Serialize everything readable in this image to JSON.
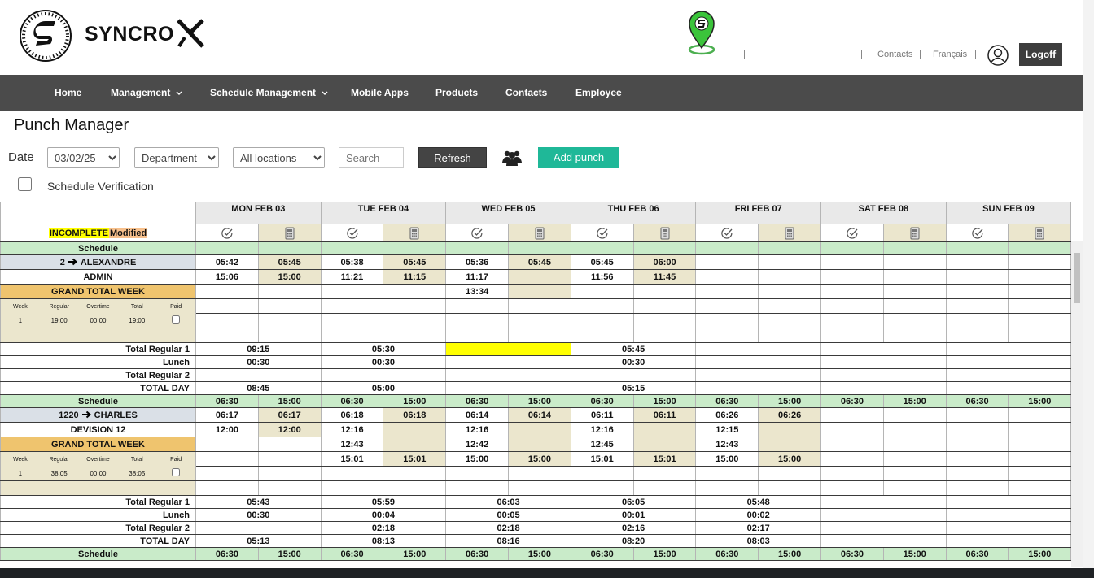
{
  "header": {
    "brand": "SYNCRO",
    "links": [
      "Contacts",
      "Français"
    ],
    "logoff": "Logoff"
  },
  "nav": [
    {
      "label": "Home",
      "menu": false
    },
    {
      "label": "Management",
      "menu": true
    },
    {
      "label": "Schedule Management",
      "menu": true
    },
    {
      "label": "Mobile Apps",
      "menu": false
    },
    {
      "label": "Products",
      "menu": false
    },
    {
      "label": "Contacts",
      "menu": false
    },
    {
      "label": "Employee",
      "menu": false
    }
  ],
  "page_title": "Punch Manager",
  "filters": {
    "date_label": "Date",
    "date": "03/02/25",
    "department": "Department",
    "locations": "All locations",
    "search_placeholder": "Search",
    "refresh": "Refresh",
    "add_punch": "Add punch",
    "schedule_verification": "Schedule Verification"
  },
  "table": {
    "days": [
      "MON FEB 03",
      "TUE FEB 04",
      "WED FEB 05",
      "THU FEB 06",
      "FRI FEB 07",
      "SAT FEB 08",
      "SUN FEB 09"
    ],
    "status": {
      "incomplete": "INCOMPLETE",
      "modified": "Modified"
    },
    "schedule_label": "Schedule",
    "grand_total_label": "GRAND TOTAL WEEK",
    "summary_headers": [
      "Week",
      "Regular",
      "Overtime",
      "Total",
      "Paid"
    ],
    "total_labels": [
      "Total Regular 1",
      "Lunch",
      "Total Regular 2",
      "TOTAL DAY"
    ],
    "employees": [
      {
        "id": "2",
        "name": "ALEXANDRE",
        "department": "ADMIN",
        "schedule": [],
        "punches": [
          [
            "05:42",
            "05:45",
            "05:38",
            "05:45",
            "05:36",
            "05:45",
            "05:45",
            "06:00"
          ],
          [
            "15:06",
            "15:00",
            "11:21",
            "11:15",
            "11:17",
            null,
            "11:56",
            "11:45"
          ],
          [
            null,
            null,
            null,
            null,
            "13:34"
          ]
        ],
        "summary": {
          "week": 1,
          "regular": "19:00",
          "overtime": "00:00",
          "total": "19:00",
          "paid": false
        },
        "totals": [
          [
            "09:15",
            "05:30",
            null,
            "05:45"
          ],
          [
            "00:30",
            "00:30",
            null,
            "00:30"
          ],
          [],
          [
            "08:45",
            "05:00",
            null,
            "05:15"
          ]
        ],
        "incomplete": [
          false,
          false,
          true,
          false,
          false,
          false,
          false
        ]
      },
      {
        "id": "1220",
        "name": "CHARLES",
        "department": "DEVISION 12",
        "schedule": [
          "06:30",
          "15:00",
          "06:30",
          "15:00",
          "06:30",
          "15:00",
          "06:30",
          "15:00",
          "06:30",
          "15:00",
          "06:30",
          "15:00",
          "06:30",
          "15:00"
        ],
        "punches": [
          [
            "06:17",
            "06:17",
            "06:18",
            "06:18",
            "06:14",
            "06:14",
            "06:11",
            "06:11",
            "06:26",
            "06:26"
          ],
          [
            "12:00",
            "12:00",
            "12:16",
            null,
            "12:16",
            null,
            "12:16",
            null,
            "12:15"
          ],
          [
            null,
            null,
            "12:43",
            null,
            "12:42",
            null,
            "12:45",
            null,
            "12:43"
          ],
          [
            null,
            null,
            "15:01",
            "15:01",
            "15:00",
            "15:00",
            "15:01",
            "15:01",
            "15:00",
            "15:00"
          ]
        ],
        "summary": {
          "week": 1,
          "regular": "38:05",
          "overtime": "00:00",
          "total": "38:05",
          "paid": false
        },
        "totals": [
          [
            "05:43",
            "05:59",
            "06:03",
            "06:05",
            "05:48"
          ],
          [
            "00:30",
            "00:04",
            "00:05",
            "00:01",
            "00:02"
          ],
          [
            null,
            "02:18",
            "02:18",
            "02:16",
            "02:17"
          ],
          [
            "05:13",
            "08:13",
            "08:16",
            "08:20",
            "08:03"
          ]
        ],
        "incomplete": [
          false,
          false,
          false,
          false,
          false,
          false,
          false
        ]
      },
      {
        "schedule": [
          "06:30",
          "15:00",
          "06:30",
          "15:00",
          "06:30",
          "15:00",
          "06:30",
          "15:00",
          "06:30",
          "15:00",
          "06:30",
          "15:00",
          "06:30",
          "15:00"
        ]
      }
    ]
  }
}
